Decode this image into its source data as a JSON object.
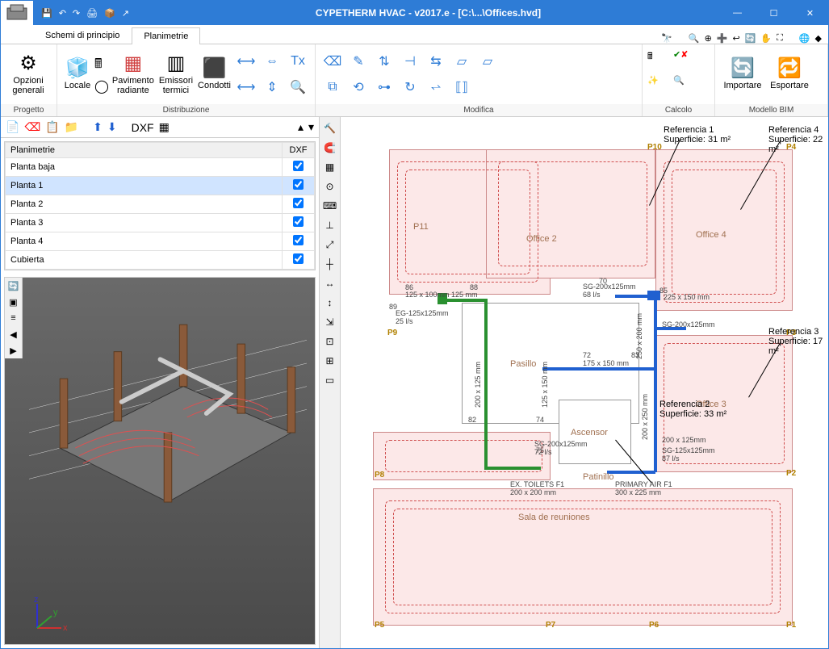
{
  "title": "CYPETHERM HVAC - v2017.e - [C:\\...\\Offices.hvd]",
  "tabs": {
    "schemi": "Schemi di principio",
    "planimetrie": "Planimetrie"
  },
  "ribbon": {
    "progetto": "Progetto",
    "opzioni": "Opzioni generali",
    "distribuzione": "Distribuzione",
    "locale": "Locale",
    "pavimento": "Pavimento radiante",
    "emissori": "Emissori termici",
    "condotti": "Condotti",
    "modifica": "Modifica",
    "calcolo": "Calcolo",
    "modellobim": "Modello BIM",
    "importare": "Importare",
    "esportare": "Esportare"
  },
  "planheader": {
    "col1": "Planimetrie",
    "col2": "DXF"
  },
  "plans": [
    {
      "name": "Planta baja",
      "dxf": true,
      "sel": false
    },
    {
      "name": "Planta 1",
      "dxf": true,
      "sel": true
    },
    {
      "name": "Planta 2",
      "dxf": true,
      "sel": false
    },
    {
      "name": "Planta 3",
      "dxf": true,
      "sel": false
    },
    {
      "name": "Planta 4",
      "dxf": true,
      "sel": false
    },
    {
      "name": "Cubierta",
      "dxf": true,
      "sel": false
    }
  ],
  "rooms": {
    "office2": "Office 2",
    "office3": "Office 3",
    "office4": "Office 4",
    "pasillo": "Pasillo",
    "ascensor": "Ascensor",
    "patinillo": "Patinillo",
    "sala": "Sala de reuniones",
    "p11": "P11"
  },
  "refs": {
    "r1a": "Referencia 1",
    "r1b": "Superficie: 31 m²",
    "r2a": "Referencia 2",
    "r2b": "Superficie: 33 m²",
    "r3a": "Referencia 3",
    "r3b": "Superficie: 17 m²",
    "r4a": "Referencia 4",
    "r4b": "Superficie: 22 m²"
  },
  "dims": {
    "d1": "125 x 100mm  125 mm",
    "d2": "EG-125x125mm\n25 l/s",
    "d3": "SG-200x125mm\n68 l/s",
    "d4": "225 x 150 mm",
    "d5": "SG-200x125mm",
    "d6": "175 x 150 mm",
    "d7": "250 x 200 mm",
    "d8": "200 x 125 mm",
    "d9": "125 x 150 mm",
    "d10": "SG-200x125mm\n72 l/s",
    "d11": "SG-125x125mm\n87 l/s",
    "d12": "200 x 125mm",
    "d13": "EX. TOILETS F1\n200 x 200 mm",
    "d14": "PRIMARY AIR F1\n300 x 225 mm",
    "d15": "200 x 250 mm",
    "d16": "86",
    "d17": "88",
    "d18": "89",
    "d19": "70",
    "d20": "72",
    "d21": "83",
    "d22": "82",
    "d23": "74",
    "d24": "75",
    "d25": "85"
  },
  "ptags": {
    "p1": "P1",
    "p2": "P2",
    "p3": "P3",
    "p4": "P4",
    "p5": "P5",
    "p6": "P6",
    "p7": "P7",
    "p8": "P8",
    "p9": "P9",
    "p10": "P10"
  }
}
